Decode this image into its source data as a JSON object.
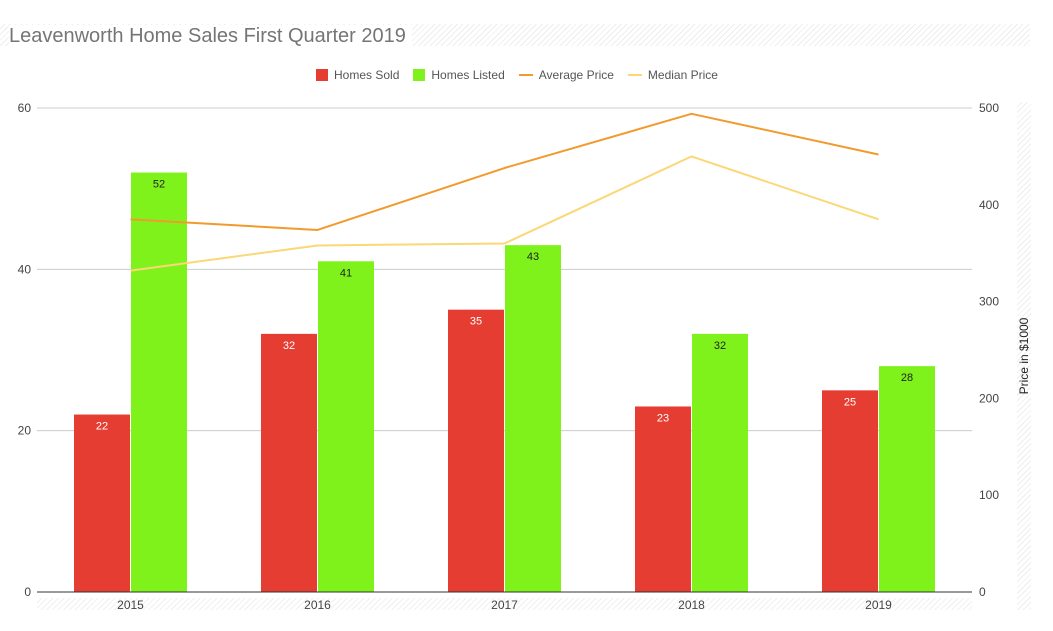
{
  "chart_data": {
    "type": "bar",
    "title": "Leavenworth Home Sales First Quarter 2019",
    "categories": [
      "2015",
      "2016",
      "2017",
      "2018",
      "2019"
    ],
    "series": [
      {
        "name": "Homes Sold",
        "type": "bar",
        "axis": "left",
        "color": "#e53d31",
        "values": [
          22,
          32,
          35,
          23,
          25
        ]
      },
      {
        "name": "Homes Listed",
        "type": "bar",
        "axis": "left",
        "color": "#7ff21c",
        "values": [
          52,
          41,
          43,
          32,
          28
        ]
      },
      {
        "name": "Average Price",
        "type": "line",
        "axis": "right",
        "color": "#f29a2e",
        "values": [
          385,
          374,
          438,
          494,
          452
        ]
      },
      {
        "name": "Median Price",
        "type": "line",
        "axis": "right",
        "color": "#fbd775",
        "values": [
          332,
          358,
          360,
          450,
          385
        ]
      }
    ],
    "y_left": {
      "ylim": [
        0,
        60
      ],
      "ticks": [
        0,
        20,
        40,
        60
      ],
      "label": ""
    },
    "y_right": {
      "ylim": [
        0,
        500
      ],
      "ticks": [
        0,
        100,
        200,
        300,
        400,
        500
      ],
      "label": "Price in $1000"
    },
    "xlabel": "",
    "grid": true,
    "legend_position": "top"
  }
}
